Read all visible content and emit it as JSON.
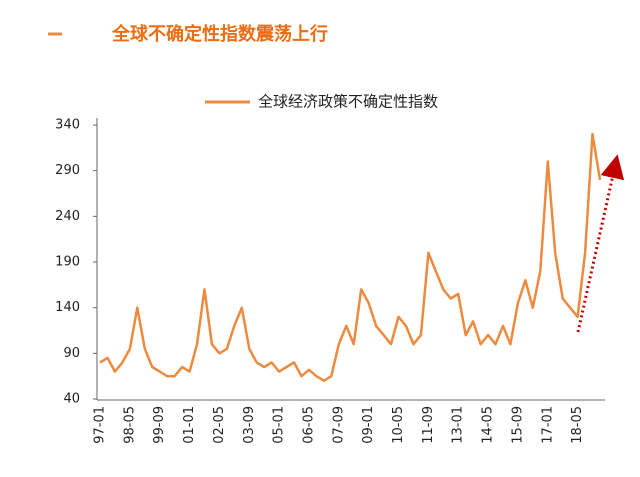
{
  "chart_data": {
    "type": "line",
    "title": "全球不确定性指数震荡上行",
    "categories": [
      "97-01",
      null,
      null,
      null,
      "98-05",
      null,
      null,
      null,
      "99-09",
      null,
      null,
      null,
      "01-01",
      null,
      null,
      null,
      "02-05",
      null,
      null,
      null,
      "03-09",
      null,
      null,
      null,
      "05-01",
      null,
      null,
      null,
      "06-05",
      null,
      null,
      null,
      "07-09",
      null,
      null,
      null,
      "09-01",
      null,
      null,
      null,
      "10-05",
      null,
      null,
      null,
      "11-09",
      null,
      null,
      null,
      "13-01",
      null,
      null,
      null,
      "14-05",
      null,
      null,
      null,
      "15-09",
      null,
      null,
      null,
      "17-01",
      null,
      null,
      null,
      "18-05",
      null,
      null,
      null
    ],
    "series": [
      {
        "name": "全球经济政策不确定性指数",
        "color": "#ed8a3f",
        "values": [
          80,
          85,
          70,
          80,
          95,
          140,
          95,
          75,
          70,
          65,
          65,
          75,
          70,
          100,
          160,
          100,
          90,
          95,
          120,
          140,
          95,
          80,
          75,
          80,
          70,
          75,
          80,
          65,
          72,
          65,
          60,
          65,
          100,
          120,
          100,
          160,
          145,
          120,
          110,
          100,
          130,
          120,
          100,
          110,
          200,
          180,
          160,
          150,
          155,
          110,
          125,
          100,
          110,
          100,
          120,
          100,
          145,
          170,
          140,
          180,
          300,
          200,
          150,
          140,
          130,
          200,
          330,
          280
        ]
      }
    ],
    "ylim": [
      40,
      340
    ],
    "yticks": [
      40,
      90,
      140,
      190,
      240,
      290,
      340
    ]
  }
}
